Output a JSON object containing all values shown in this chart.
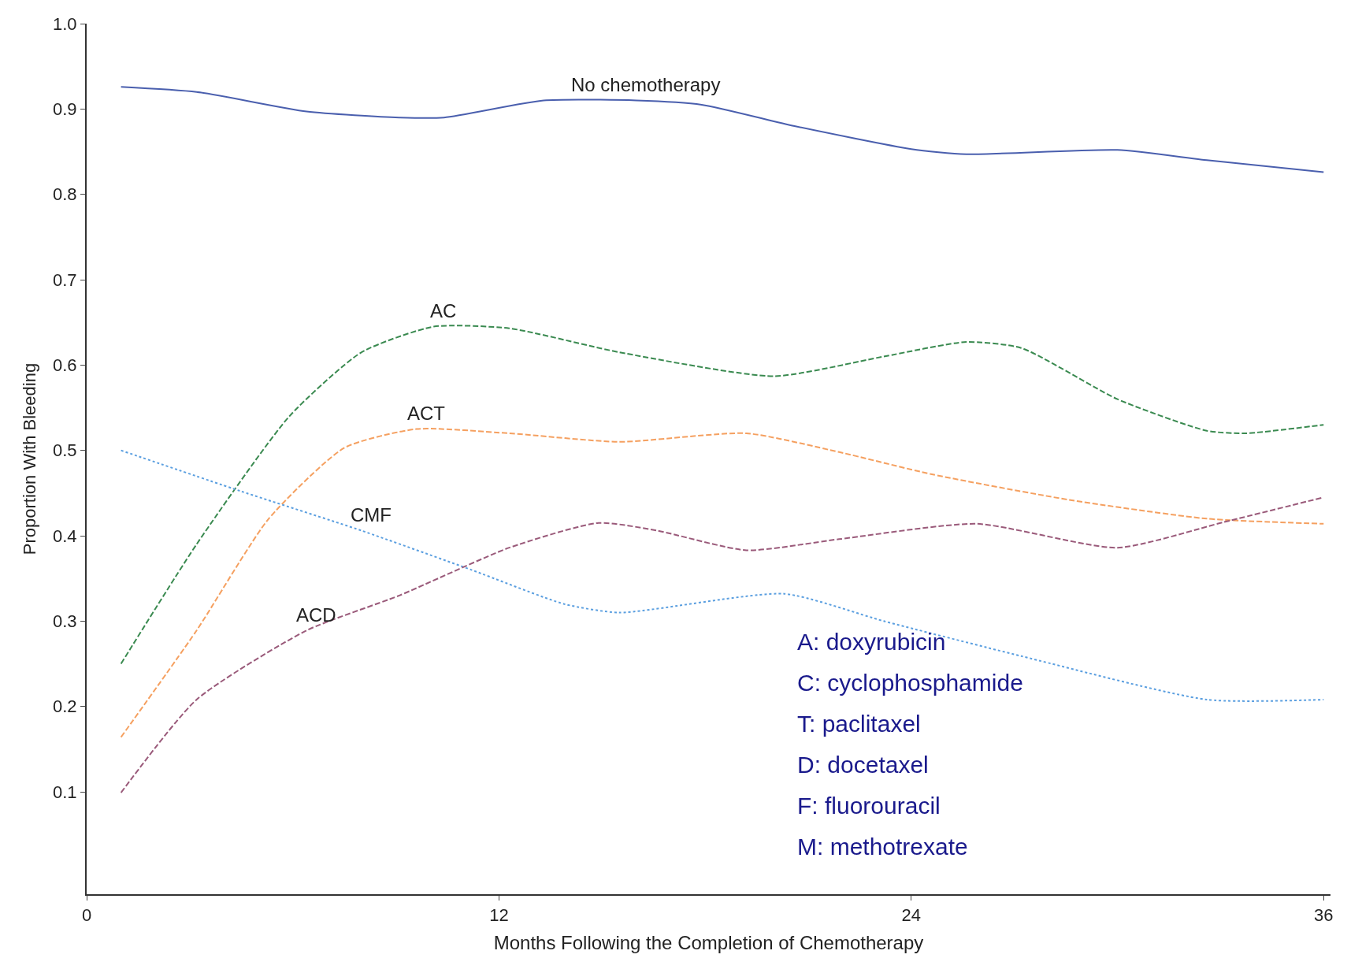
{
  "chart_data": {
    "type": "line",
    "xlabel": "Months Following the Completion of Chemotherapy",
    "ylabel": "Proportion With Bleeding",
    "xlim": [
      0,
      36.2
    ],
    "xticks": [
      0,
      12,
      24,
      36
    ],
    "ylim": [
      -0.02,
      1.0
    ],
    "yticks": [
      {
        "value": 0.1,
        "label": "0.1"
      },
      {
        "value": 0.2,
        "label": "0.2"
      },
      {
        "value": 0.3,
        "label": "0.3"
      },
      {
        "value": 0.4,
        "label": "0.4"
      },
      {
        "value": 0.5,
        "label": "0.5"
      },
      {
        "value": 0.6,
        "label": "0.6"
      },
      {
        "value": 0.7,
        "label": "0.7"
      },
      {
        "value": 0.8,
        "label": "0.8"
      },
      {
        "value": 0.9,
        "label": "0.9"
      },
      {
        "value": 1.0,
        "label": "1.0"
      }
    ],
    "marker": "none",
    "series": [
      {
        "color": "#4a5fae",
        "line_style": "solid",
        "x": [
          1,
          3.2,
          6.4,
          9.1,
          10.4,
          13.3,
          16,
          17.9,
          20.6,
          24,
          25.6,
          30,
          32.6,
          36
        ],
        "values": [
          0.926,
          0.92,
          0.897,
          0.89,
          0.89,
          0.91,
          0.91,
          0.905,
          0.88,
          0.853,
          0.847,
          0.852,
          0.84,
          0.826
        ]
      },
      {
        "color": "#3a8a50",
        "line_style": "dashed",
        "x": [
          1,
          3.2,
          5.9,
          8,
          10.1,
          12.3,
          15.5,
          20,
          23.2,
          25.6,
          27.2,
          30,
          32.6,
          33.7,
          36
        ],
        "values": [
          0.25,
          0.39,
          0.54,
          0.615,
          0.645,
          0.643,
          0.615,
          0.587,
          0.61,
          0.627,
          0.62,
          0.56,
          0.523,
          0.52,
          0.53
        ]
      },
      {
        "color": "#f5a060",
        "line_style": "dashed",
        "x": [
          1,
          3.2,
          5.3,
          7.5,
          9.6,
          12.3,
          15.5,
          19.2,
          21.9,
          24.6,
          28.6,
          32.6,
          36
        ],
        "values": [
          0.164,
          0.289,
          0.42,
          0.503,
          0.525,
          0.52,
          0.51,
          0.52,
          0.498,
          0.472,
          0.442,
          0.42,
          0.414
        ]
      },
      {
        "color": "#5b9fe0",
        "line_style": "dotted",
        "x": [
          1,
          4.5,
          8,
          11.2,
          13.9,
          15.5,
          20.3,
          23.2,
          27.2,
          32.6,
          36
        ],
        "values": [
          0.5,
          0.452,
          0.406,
          0.36,
          0.32,
          0.31,
          0.332,
          0.3,
          0.259,
          0.208,
          0.208
        ]
      },
      {
        "color": "#9a5a7a",
        "line_style": "dashed",
        "x": [
          1,
          3.2,
          6.4,
          9.1,
          12.3,
          14.9,
          16.6,
          19.2,
          21.9,
          25.9,
          30,
          33.1,
          36
        ],
        "values": [
          0.099,
          0.208,
          0.289,
          0.33,
          0.386,
          0.415,
          0.406,
          0.383,
          0.396,
          0.414,
          0.386,
          0.416,
          0.445
        ]
      }
    ],
    "annotations": [
      {
        "text": "No chemotherapy",
        "x": 16,
        "y": 0.91
      },
      {
        "text": "AC",
        "x": 10.1,
        "y": 0.645
      },
      {
        "text": "ACT",
        "x": 9.6,
        "y": 0.525
      },
      {
        "text": "CMF",
        "x": 8,
        "y": 0.406
      },
      {
        "text": "ACD",
        "x": 6.4,
        "y": 0.289
      },
      "A: doxyrubicin",
      "C: cyclophosphamide",
      "T: paclitaxel",
      "D: docetaxel",
      "F: fluorouracil",
      "M: methotrexate"
    ]
  }
}
